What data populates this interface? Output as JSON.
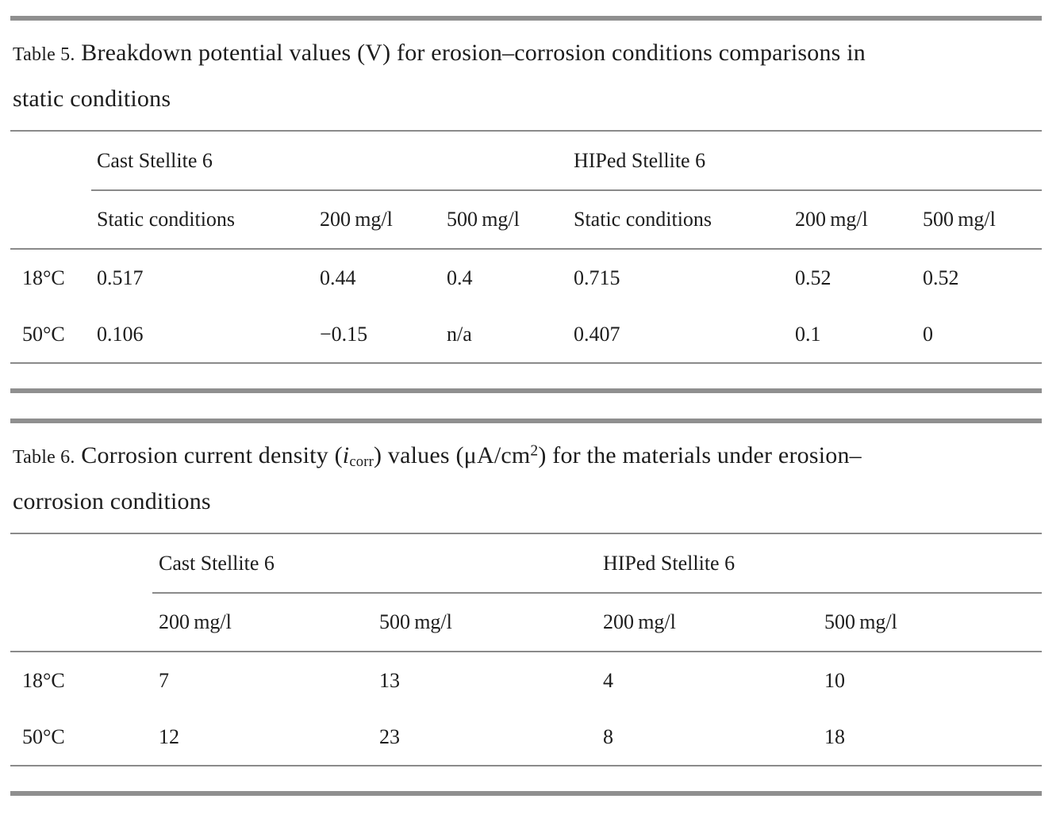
{
  "colors": {
    "text": "#1c1c1c",
    "rule_thin": "#8a8a8a",
    "bar_thick": "#8f8f8f",
    "background": "#ffffff"
  },
  "table5": {
    "label": "Table 5.",
    "title_line1": "Breakdown potential values (V) for erosion–corrosion conditions comparisons in",
    "title_line2": "static conditions",
    "group_headers": [
      "Cast Stellite 6",
      "HIPed Stellite 6"
    ],
    "col_headers": [
      "Static conditions",
      "200 mg/l",
      "500 mg/l",
      "Static conditions",
      "200 mg/l",
      "500 mg/l"
    ],
    "rows": [
      {
        "label": "18°C",
        "values": [
          "0.517",
          "0.44",
          "0.4",
          "0.715",
          "0.52",
          "0.52"
        ]
      },
      {
        "label": "50°C",
        "values": [
          "0.106",
          "−0.15",
          "n/a",
          "0.407",
          "0.1",
          "0"
        ]
      }
    ]
  },
  "table6": {
    "label": "Table 6.",
    "title_parts": {
      "prefix": "Corrosion current density (",
      "symbol": "i",
      "subscript": "corr",
      "mid": ") values (μA/cm",
      "superscript": "2",
      "suffix": ") for the materials under erosion–",
      "line2": "corrosion conditions"
    },
    "group_headers": [
      "Cast Stellite 6",
      "HIPed Stellite 6"
    ],
    "col_headers": [
      "200 mg/l",
      "500 mg/l",
      "200 mg/l",
      "500 mg/l"
    ],
    "rows": [
      {
        "label": "18°C",
        "values": [
          "7",
          "13",
          "4",
          "10"
        ]
      },
      {
        "label": "50°C",
        "values": [
          "12",
          "23",
          "8",
          "18"
        ]
      }
    ]
  }
}
